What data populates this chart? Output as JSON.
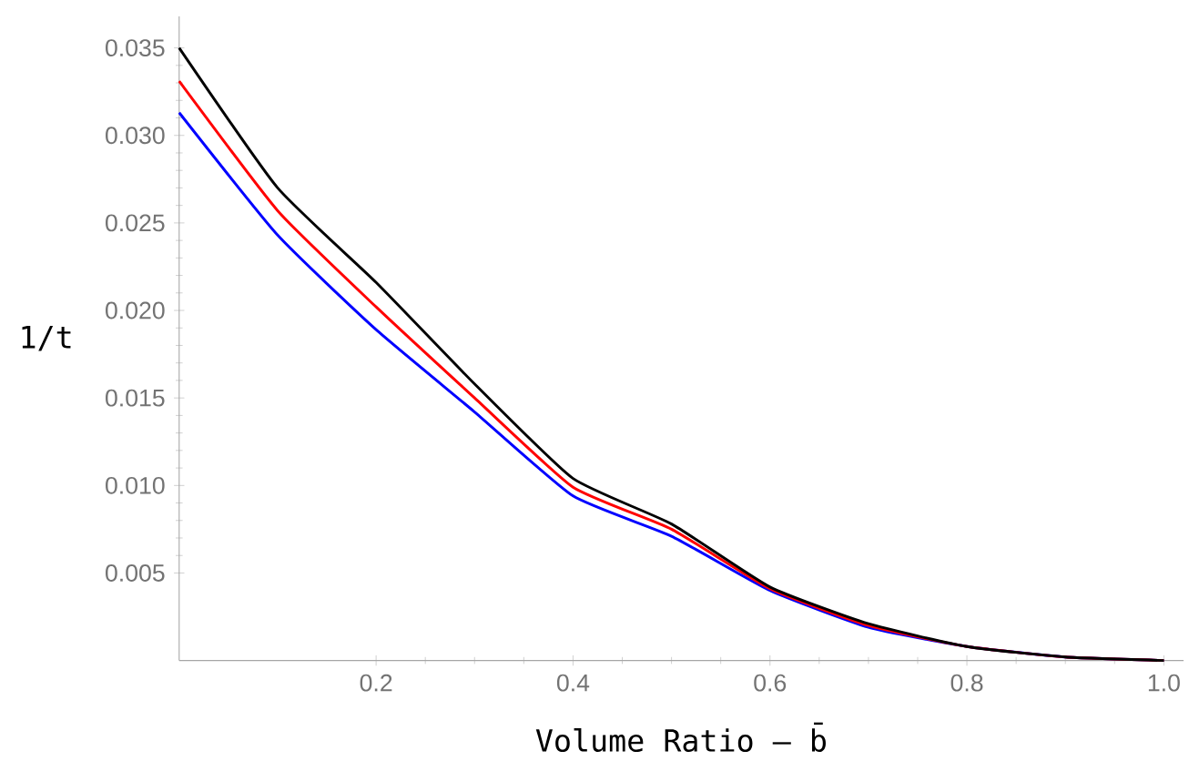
{
  "chart_data": {
    "type": "line",
    "xlabel": "Volume Ratio – b̄",
    "ylabel": "1/t",
    "xlim": [
      0,
      1.02
    ],
    "ylim": [
      0,
      0.0368
    ],
    "xticks": [
      {
        "value": 0.2,
        "label": "0.2"
      },
      {
        "value": 0.4,
        "label": "0.4"
      },
      {
        "value": 0.6,
        "label": "0.6"
      },
      {
        "value": 0.8,
        "label": "0.8"
      },
      {
        "value": 1.0,
        "label": "1.0"
      }
    ],
    "yticks": [
      {
        "value": 0.005,
        "label": "0.005"
      },
      {
        "value": 0.01,
        "label": "0.010"
      },
      {
        "value": 0.015,
        "label": "0.015"
      },
      {
        "value": 0.02,
        "label": "0.020"
      },
      {
        "value": 0.025,
        "label": "0.025"
      },
      {
        "value": 0.03,
        "label": "0.030"
      },
      {
        "value": 0.035,
        "label": "0.035"
      }
    ],
    "grid": false,
    "marker": "none",
    "line_style": "solid",
    "x": [
      0,
      0.1,
      0.2,
      0.3,
      0.4,
      0.5,
      0.6,
      0.7,
      0.8,
      0.9,
      1.0
    ],
    "series": [
      {
        "color": "#000000",
        "values": [
          0.035,
          0.027,
          0.0216,
          0.0158,
          0.0104,
          0.0078,
          0.0042,
          0.0021,
          0.0008,
          0.0002,
          0
        ]
      },
      {
        "color": "#ff0000",
        "values": [
          0.0331,
          0.0257,
          0.0202,
          0.015,
          0.0099,
          0.0075,
          0.0041,
          0.002,
          0.0008,
          0.0002,
          0
        ]
      },
      {
        "color": "#0000ff",
        "values": [
          0.0313,
          0.0243,
          0.0189,
          0.0142,
          0.0094,
          0.0071,
          0.004,
          0.0019,
          0.0008,
          0.0002,
          0
        ]
      }
    ]
  }
}
